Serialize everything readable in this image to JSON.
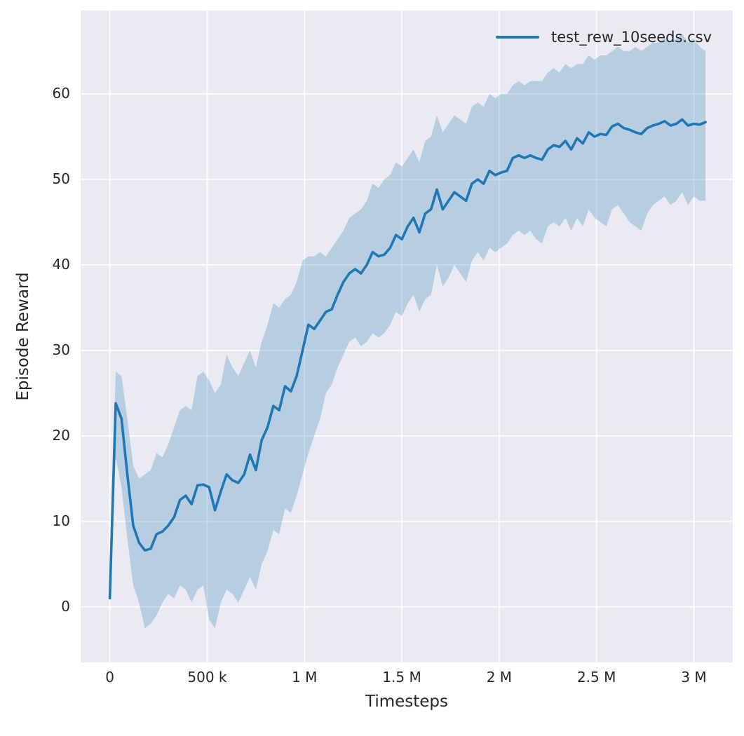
{
  "chart_data": {
    "type": "line",
    "title": "",
    "xlabel": "Timesteps",
    "ylabel": "Episode Reward",
    "legend": [
      {
        "label": "test_rew_10seeds.csv",
        "color": "#1f77b4"
      }
    ],
    "legend_position": "upper right",
    "grid": true,
    "xlim": [
      -150000,
      3200000
    ],
    "ylim": [
      -6.5,
      69.75
    ],
    "x_ticks": [
      {
        "value": 0,
        "label": "0"
      },
      {
        "value": 500000,
        "label": "500 k"
      },
      {
        "value": 1000000,
        "label": "1 M"
      },
      {
        "value": 1500000,
        "label": "1.5 M"
      },
      {
        "value": 2000000,
        "label": "2 M"
      },
      {
        "value": 2500000,
        "label": "2.5 M"
      },
      {
        "value": 3000000,
        "label": "3 M"
      }
    ],
    "y_ticks": [
      {
        "value": 0,
        "label": "0"
      },
      {
        "value": 10,
        "label": "10"
      },
      {
        "value": 20,
        "label": "20"
      },
      {
        "value": 30,
        "label": "30"
      },
      {
        "value": 40,
        "label": "40"
      },
      {
        "value": 50,
        "label": "50"
      },
      {
        "value": 60,
        "label": "60"
      }
    ],
    "styles": {
      "axes_bg": "#eaeaf2",
      "grid_color": "#ffffff",
      "line_color": "#1f77b4",
      "band_color": "#1f77b4",
      "band_opacity": 0.25,
      "text_color": "#262626"
    },
    "series": [
      {
        "name": "test_rew_10seeds.csv",
        "x": [
          0,
          30000,
          60000,
          90000,
          120000,
          150000,
          180000,
          210000,
          240000,
          270000,
          300000,
          330000,
          360000,
          390000,
          420000,
          450000,
          480000,
          510000,
          540000,
          570000,
          600000,
          630000,
          660000,
          690000,
          720000,
          750000,
          780000,
          810000,
          840000,
          870000,
          900000,
          930000,
          960000,
          990000,
          1020000,
          1050000,
          1080000,
          1110000,
          1140000,
          1170000,
          1200000,
          1230000,
          1260000,
          1290000,
          1320000,
          1350000,
          1380000,
          1410000,
          1440000,
          1470000,
          1500000,
          1530000,
          1560000,
          1590000,
          1620000,
          1650000,
          1680000,
          1710000,
          1740000,
          1770000,
          1800000,
          1830000,
          1860000,
          1890000,
          1920000,
          1950000,
          1980000,
          2010000,
          2040000,
          2070000,
          2100000,
          2130000,
          2160000,
          2190000,
          2220000,
          2250000,
          2280000,
          2310000,
          2340000,
          2370000,
          2400000,
          2430000,
          2460000,
          2490000,
          2520000,
          2550000,
          2580000,
          2610000,
          2640000,
          2670000,
          2700000,
          2730000,
          2760000,
          2790000,
          2820000,
          2850000,
          2880000,
          2910000,
          2940000,
          2970000,
          3000000,
          3030000,
          3060000
        ],
        "mean": [
          1.0,
          23.8,
          22.0,
          15.5,
          9.5,
          7.5,
          6.6,
          6.8,
          8.5,
          8.8,
          9.5,
          10.5,
          12.5,
          13.0,
          12.0,
          14.2,
          14.3,
          14.0,
          11.3,
          13.5,
          15.5,
          14.8,
          14.5,
          15.5,
          17.8,
          16.0,
          19.5,
          21.0,
          23.5,
          23.0,
          25.8,
          25.2,
          27.0,
          30.0,
          33.0,
          32.5,
          33.5,
          34.5,
          34.8,
          36.5,
          38.0,
          39.0,
          39.5,
          39.0,
          40.0,
          41.5,
          41.0,
          41.2,
          42.0,
          43.5,
          43.0,
          44.5,
          45.5,
          43.8,
          46.0,
          46.5,
          48.8,
          46.5,
          47.5,
          48.5,
          48.0,
          47.5,
          49.5,
          50.0,
          49.5,
          51.0,
          50.5,
          50.8,
          51.0,
          52.5,
          52.8,
          52.5,
          52.8,
          52.5,
          52.3,
          53.5,
          54.0,
          53.8,
          54.5,
          53.5,
          54.8,
          54.2,
          55.5,
          55.0,
          55.3,
          55.2,
          56.2,
          56.5,
          56.0,
          55.8,
          55.5,
          55.3,
          56.0,
          56.3,
          56.5,
          56.8,
          56.3,
          56.5,
          57.0,
          56.3,
          56.5,
          56.4,
          56.7
        ],
        "lo": [
          0.8,
          17.5,
          14.0,
          8.0,
          2.5,
          0.5,
          -2.5,
          -2.0,
          -1.0,
          0.5,
          1.5,
          1.0,
          2.5,
          2.0,
          0.5,
          2.0,
          2.5,
          -1.5,
          -2.5,
          0.5,
          2.0,
          1.5,
          0.5,
          2.0,
          3.5,
          2.0,
          5.0,
          6.5,
          9.0,
          8.5,
          11.5,
          11.0,
          13.0,
          15.5,
          18.0,
          20.0,
          22.0,
          25.0,
          26.0,
          28.0,
          29.5,
          31.0,
          31.5,
          30.5,
          31.0,
          32.0,
          31.5,
          32.0,
          33.0,
          34.5,
          34.0,
          35.5,
          36.5,
          34.5,
          36.0,
          36.5,
          40.0,
          37.5,
          38.5,
          40.0,
          39.0,
          38.0,
          40.5,
          41.5,
          40.5,
          42.0,
          41.5,
          42.0,
          42.5,
          43.5,
          44.0,
          43.5,
          44.0,
          43.0,
          42.5,
          44.5,
          45.0,
          44.5,
          45.5,
          44.0,
          45.5,
          44.5,
          46.5,
          45.5,
          45.0,
          44.5,
          46.5,
          47.0,
          46.0,
          45.0,
          44.5,
          44.0,
          46.0,
          47.0,
          47.5,
          48.0,
          47.0,
          47.5,
          48.5,
          47.0,
          48.0,
          47.5,
          47.5
        ],
        "hi": [
          1.2,
          27.5,
          27.0,
          22.0,
          16.5,
          15.0,
          15.5,
          16.0,
          18.0,
          17.5,
          19.0,
          21.0,
          23.0,
          23.5,
          23.0,
          27.0,
          27.5,
          26.5,
          25.0,
          26.0,
          29.5,
          28.0,
          27.0,
          28.5,
          30.0,
          28.0,
          31.0,
          33.0,
          35.5,
          35.0,
          36.0,
          36.5,
          38.0,
          40.5,
          41.0,
          41.0,
          41.5,
          41.0,
          42.0,
          43.0,
          44.0,
          45.5,
          46.0,
          46.5,
          47.5,
          49.5,
          49.0,
          50.0,
          50.5,
          52.0,
          51.5,
          52.5,
          53.5,
          52.0,
          54.5,
          55.0,
          57.5,
          55.5,
          56.5,
          57.5,
          57.0,
          56.5,
          58.5,
          59.0,
          58.5,
          60.0,
          59.5,
          60.0,
          60.0,
          61.0,
          61.5,
          61.0,
          61.5,
          61.5,
          61.5,
          62.5,
          63.0,
          62.5,
          63.5,
          63.0,
          63.5,
          63.5,
          64.5,
          64.0,
          64.5,
          64.5,
          65.0,
          65.5,
          65.0,
          65.0,
          65.5,
          65.0,
          65.5,
          66.0,
          66.0,
          66.5,
          66.0,
          66.5,
          67.0,
          66.0,
          66.5,
          65.5,
          65.0
        ]
      }
    ]
  }
}
